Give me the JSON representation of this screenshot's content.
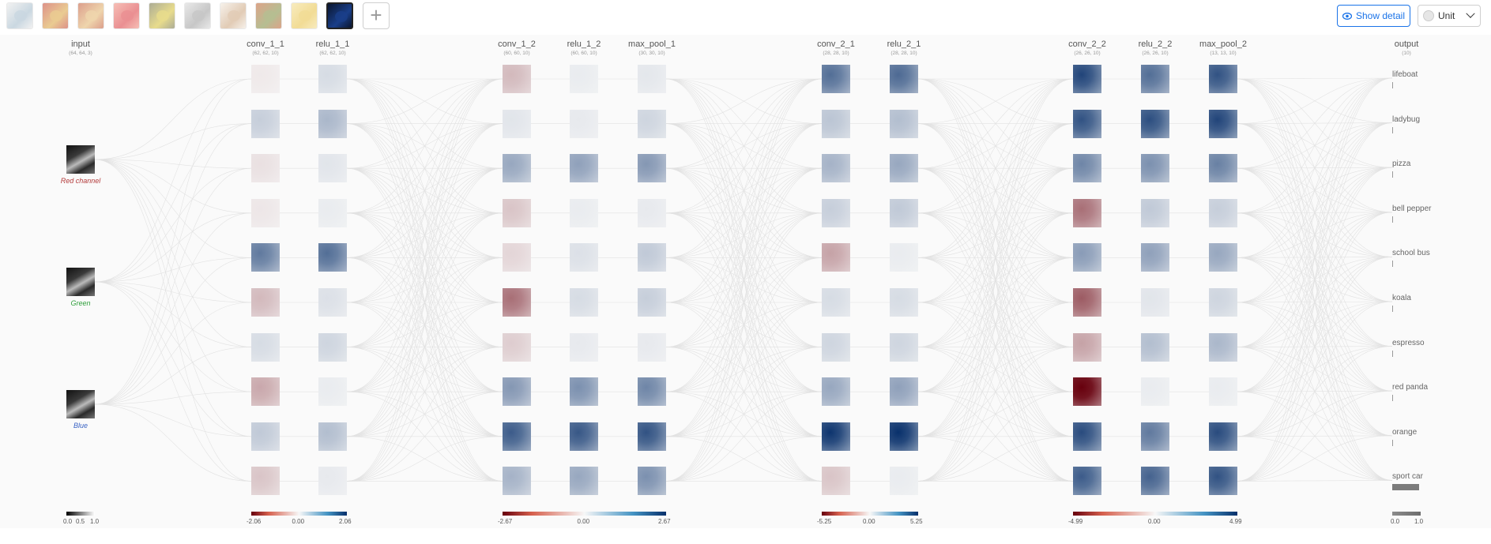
{
  "toolbar": {
    "thumbnails": [
      {
        "name": "lifeboat",
        "c1": "#9fb8c9",
        "c2": "#e7e7e7",
        "selected": false
      },
      {
        "name": "ladybug",
        "c1": "#d9a23a",
        "c2": "#c23a2a",
        "selected": false
      },
      {
        "name": "pizza",
        "c1": "#e2b46a",
        "c2": "#c0512f",
        "selected": false
      },
      {
        "name": "bell pepper",
        "c1": "#d9353a",
        "c2": "#f08a7a",
        "selected": false
      },
      {
        "name": "school bus",
        "c1": "#d6c030",
        "c2": "#6a6a40",
        "selected": false
      },
      {
        "name": "koala",
        "c1": "#9a9a9a",
        "c2": "#d6d6d6",
        "selected": false
      },
      {
        "name": "espresso",
        "c1": "#caa27a",
        "c2": "#f0e6da",
        "selected": false
      },
      {
        "name": "red panda",
        "c1": "#7a8a3a",
        "c2": "#c05a2a",
        "selected": false
      },
      {
        "name": "orange",
        "c1": "#e8c040",
        "c2": "#f3dc8a",
        "selected": false
      },
      {
        "name": "sport car",
        "c1": "#1a3f8a",
        "c2": "#0a1630",
        "selected": true
      }
    ],
    "add_label": "+",
    "show_detail_label": "Show detail",
    "unit_label": "Unit"
  },
  "input": {
    "title": "input",
    "dims": "(64, 64, 3)",
    "channels": [
      {
        "label": "Red channel",
        "color": "#b33a3a"
      },
      {
        "label": "Green",
        "color": "#2e9e3a"
      },
      {
        "label": "Blue",
        "color": "#3a63c4"
      }
    ],
    "scale_labels": [
      "0.0",
      "0.5",
      "1.0"
    ]
  },
  "layers": [
    {
      "name": "conv_1_1",
      "dims": "(62, 62, 10)",
      "intensity": [
        -0.05,
        0.18,
        -0.08,
        -0.06,
        0.55,
        -0.22,
        0.12,
        -0.28,
        0.2,
        -0.18
      ]
    },
    {
      "name": "relu_1_1",
      "dims": "(62, 62, 10)",
      "intensity": [
        0.12,
        0.28,
        0.08,
        0.05,
        0.6,
        0.1,
        0.15,
        0.05,
        0.25,
        0.06
      ]
    },
    {
      "name": "conv_1_2",
      "dims": "(60, 60, 10)",
      "intensity": [
        -0.22,
        0.08,
        0.35,
        -0.18,
        -0.12,
        -0.48,
        -0.15,
        0.42,
        0.68,
        0.3
      ]
    },
    {
      "name": "relu_1_2",
      "dims": "(60, 60, 10)",
      "intensity": [
        0.05,
        0.06,
        0.38,
        0.05,
        0.1,
        0.12,
        0.06,
        0.45,
        0.7,
        0.35
      ]
    },
    {
      "name": "max_pool_1",
      "dims": "(30, 30, 10)",
      "intensity": [
        0.07,
        0.15,
        0.42,
        0.06,
        0.2,
        0.18,
        0.06,
        0.5,
        0.72,
        0.45
      ]
    },
    {
      "name": "conv_2_1",
      "dims": "(28, 28, 10)",
      "intensity": [
        0.6,
        0.22,
        0.3,
        0.18,
        -0.3,
        0.12,
        0.15,
        0.35,
        0.85,
        -0.18
      ]
    },
    {
      "name": "relu_2_1",
      "dims": "(28, 28, 10)",
      "intensity": [
        0.62,
        0.25,
        0.35,
        0.2,
        0.05,
        0.12,
        0.15,
        0.38,
        0.88,
        0.05
      ]
    },
    {
      "name": "conv_2_2",
      "dims": "(26, 26, 10)",
      "intensity": [
        0.78,
        0.72,
        0.5,
        -0.48,
        0.4,
        -0.55,
        -0.3,
        -0.92,
        0.75,
        0.68
      ]
    },
    {
      "name": "relu_2_2",
      "dims": "(26, 26, 10)",
      "intensity": [
        0.6,
        0.74,
        0.45,
        0.2,
        0.38,
        0.08,
        0.25,
        0.05,
        0.55,
        0.65
      ]
    },
    {
      "name": "max_pool_2",
      "dims": "(13, 13, 10)",
      "intensity": [
        0.72,
        0.78,
        0.52,
        0.18,
        0.35,
        0.15,
        0.28,
        0.05,
        0.75,
        0.72
      ]
    }
  ],
  "output": {
    "title": "output",
    "dims": "(10)",
    "classes": [
      "lifeboat",
      "ladybug",
      "pizza",
      "bell pepper",
      "school bus",
      "koala",
      "espresso",
      "red panda",
      "orange",
      "sport car"
    ],
    "probabilities": [
      0.02,
      0.0,
      0.0,
      0.0,
      0.0,
      0.0,
      0.03,
      0.0,
      0.0,
      0.95
    ],
    "scale_labels": [
      "0.0",
      "1.0"
    ]
  },
  "colorscales": [
    {
      "min": "-2.06",
      "mid": "0.00",
      "max": "2.06"
    },
    {
      "min": "-2.67",
      "mid": "0.00",
      "max": "2.67"
    },
    {
      "min": "-5.25",
      "mid": "0.00",
      "max": "5.25"
    },
    {
      "min": "-4.99",
      "mid": "0.00",
      "max": "4.99"
    }
  ],
  "colors": {
    "accent": "#1a73e8",
    "positive": "#08306b",
    "negative": "#67000d",
    "neutral": "#f7f7f7"
  }
}
